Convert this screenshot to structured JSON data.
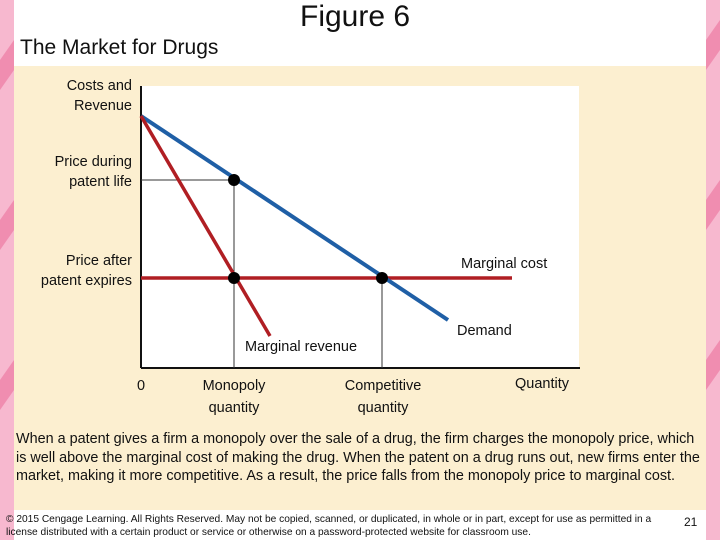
{
  "slide": {
    "title": "Figure 6",
    "subtitle": "The Market for Drugs",
    "caption": "When a patent gives a firm a monopoly over the sale of a drug, the firm charges the monopoly price, which is well above the marginal cost of making the drug. When the patent on a drug runs out, new firms enter the market, making it more competitive. As a result, the price falls from the monopoly price to marginal cost.",
    "footer": "© 2015 Cengage Learning. All Rights Reserved. May not be copied, scanned, or duplicated, in whole or in part, except for use as permitted in a license distributed with a certain product or service or otherwise on a password-protected website for classroom use.",
    "page_number": "21"
  },
  "graph": {
    "y_axis_label": "Costs and Revenue",
    "x_axis_label": "Quantity",
    "y_ticks": {
      "price_patent": "Price during patent life",
      "price_after": "Price after patent expires"
    },
    "x_ticks": {
      "origin": "0",
      "monopoly": "Monopoly quantity",
      "competitive": "Competitive quantity"
    },
    "curves": {
      "marginal_cost": "Marginal cost",
      "demand": "Demand",
      "marginal_revenue": "Marginal revenue"
    }
  },
  "colors": {
    "demand": "#1f5fa6",
    "marginal_revenue": "#b01e23",
    "marginal_cost": "#b01e23",
    "background_panel": "#fcefd0",
    "accent_pink": "#f7b8cf",
    "guide_lines": "#333333",
    "points": "#000000"
  }
}
